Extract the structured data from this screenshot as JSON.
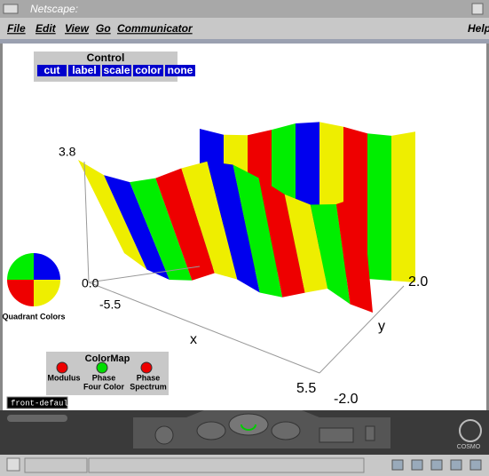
{
  "window": {
    "title": "Netscape:"
  },
  "menu": {
    "items": [
      "File",
      "Edit",
      "View",
      "Go",
      "Communicator"
    ],
    "help": "Help"
  },
  "control": {
    "title": "Control",
    "buttons": [
      "cut",
      "label",
      "scale",
      "color",
      "none"
    ]
  },
  "plot": {
    "z_max": "3.8",
    "z_min": "0.0",
    "x_min": "-5.5",
    "x_max": "5.5",
    "x_label": "x",
    "y_label": "y",
    "y_max": "2.0",
    "y_min": "-2.0"
  },
  "quadrant": {
    "label": "Quadrant Colors"
  },
  "colormap": {
    "title": "ColorMap",
    "options": [
      {
        "label": "Modulus"
      },
      {
        "label": "Phase",
        "sublabel": "Four Color"
      },
      {
        "label": "Phase",
        "sublabel": "Spectrum"
      }
    ]
  },
  "viewer": {
    "viewpoint": "front-default",
    "brand": "COSMO"
  }
}
